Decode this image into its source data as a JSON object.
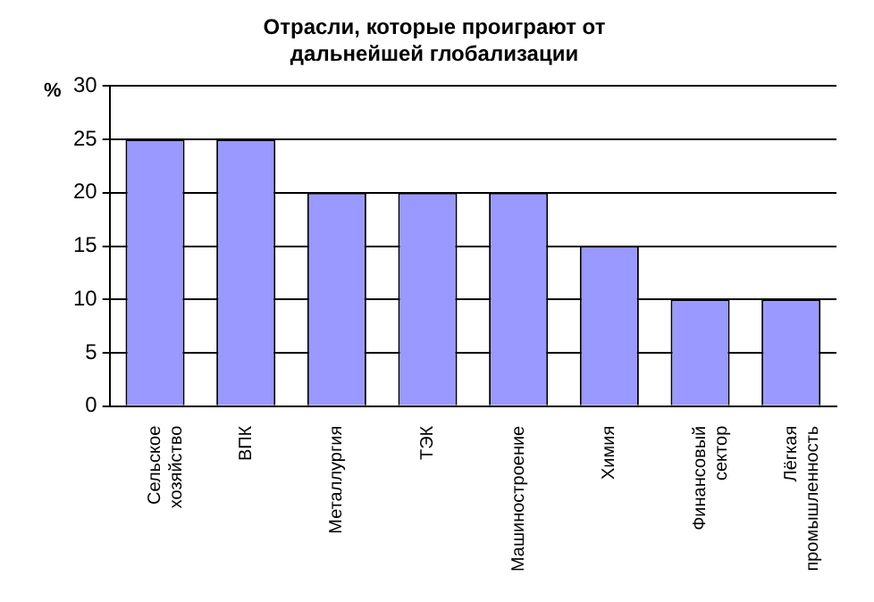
{
  "chart_data": {
    "type": "bar",
    "title": "Отрасли, которые проиграют от дальнейшей глобализации",
    "ylabel": "%",
    "categories": [
      "Сельское хозяйство",
      "ВПК",
      "Металлургия",
      "ТЭК",
      "Машиностроение",
      "Химия",
      "Финансовый сектор",
      "Лёгкая промышленность"
    ],
    "values": [
      25,
      25,
      20,
      20,
      20,
      15,
      10,
      10
    ],
    "color": "#9999ff",
    "ylim": [
      0,
      30
    ],
    "yticks": [
      0,
      5,
      10,
      15,
      20,
      25,
      30
    ],
    "grid": "y",
    "legend": false
  }
}
